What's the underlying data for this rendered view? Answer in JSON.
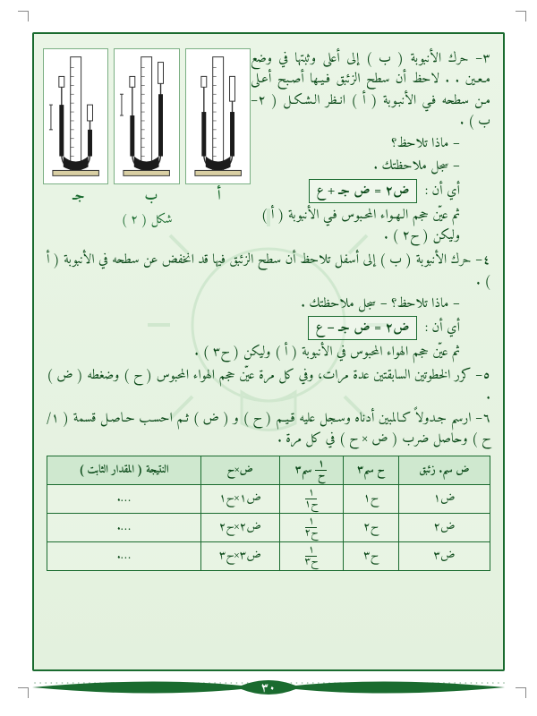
{
  "page_number": "٣٠",
  "figure": {
    "labels": [
      "أ",
      "ب",
      "جـ"
    ],
    "caption": "شكل ( ٢ )"
  },
  "equations": {
    "eq1": "ض٢ = ض جـ + ع",
    "eq2": "ض٢ = ض جـ − ع"
  },
  "paragraphs": {
    "p3_start": "٣– حرك الأنبوبة ( ب ) إلى أعلى وثبتها في وضع مـعـين . . لاحظ أن سطح الزئبق فـيـها أصـبح أعـلى مـن سطحه فـي الأنبـوبة ( أ ) انـظر الـشـكـل ( ٢– ب ) .",
    "p3_q": "– ماذا تلاحظ؟",
    "p3_note": "– سجل ملاحظتك .",
    "p3_eq_intro": "أي أن :",
    "p3_after": "ثم عيّن حجم الـهـواء المحـبوس فـي الأنبوبة ( أ ) وليكن ( ح٢ ) .",
    "p4": "٤– حرك الأنبوبة ( ب ) إلى أسفل تلاحظ أن سطح الزئبق فيها قد انخفض عن سطحه في الأنبوبة ( أ ) .",
    "p4_q": "– ماذا تلاحظ؟   – سجل ملاحظتك .",
    "p4_eq_intro": "أي أن :",
    "p4_after": "ثم عيّن حجم الهواء المحبوس في الأنبوبة ( أ ) وليكن ( ح٣ ) .",
    "p5": "٥– كرر الخطوتين السابقتين عدة مرات، وفي كل مرة عيّن حجم الهواء المحبوس ( ح ) وضغطه ( ض ) .",
    "p6": "٦– ارسم جـدولاً كـالمبين أدناه وسـجل عليه قـيـم ( ح ) و ( ض ) ثـم احسـب حـاصـل قسمة ( ١/ح ) وحاصل ضرب ( ض × ح ) في كل مرة ."
  },
  "table": {
    "headers": {
      "c1": "ض سم. زئبق",
      "c1b": "سم. زئبق",
      "c2": "ح سم٣",
      "c3_num": "١",
      "c3_den": "ح",
      "c3_unit": "سم٣",
      "c4": "ض×ح",
      "c5": "النتيجة ( المقدار الثابت )"
    },
    "rows": [
      {
        "p": "ض١",
        "v": "ح١",
        "inv_n": "١",
        "inv_d": "ح١",
        "prod": "ض١×ح١",
        "res": "…."
      },
      {
        "p": "ض٢",
        "v": "ح٢",
        "inv_n": "١",
        "inv_d": "ح٢",
        "prod": "ض٢×ح٢",
        "res": "…."
      },
      {
        "p": "ض٣",
        "v": "ح٣",
        "inv_n": "١",
        "inv_d": "ح٣",
        "prod": "ض٣×ح٣",
        "res": "…."
      }
    ]
  },
  "colors": {
    "border": "#1a6b2f",
    "text": "#0b4a19",
    "bg_top": "#eaf5e6",
    "bg_bot": "#e3f1de",
    "header_bg": "#cfe8cf",
    "mercury": "#1b1b1b",
    "tube_stroke": "#333333"
  }
}
